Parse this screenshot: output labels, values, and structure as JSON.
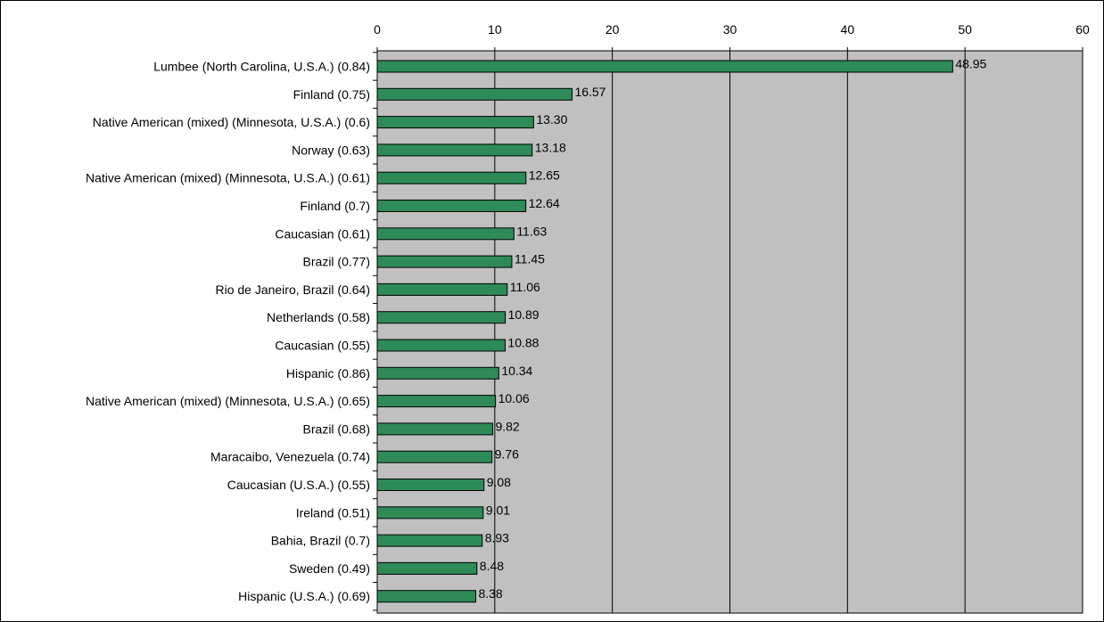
{
  "chart_data": {
    "type": "bar",
    "orientation": "horizontal",
    "title": "",
    "xlabel": "",
    "ylabel": "",
    "xlim": [
      0,
      60
    ],
    "x_ticks": [
      0,
      10,
      20,
      30,
      40,
      50,
      60
    ],
    "grid": "vertical major gridlines",
    "legend": "none",
    "categories": [
      "Lumbee (North Carolina, U.S.A.) (0.84)",
      "Finland (0.75)",
      "Native American (mixed) (Minnesota, U.S.A.) (0.6)",
      "Norway (0.63)",
      "Native American (mixed) (Minnesota, U.S.A.) (0.61)",
      "Finland (0.7)",
      "Caucasian (0.61)",
      "Brazil (0.77)",
      "Rio de Janeiro, Brazil (0.64)",
      "Netherlands  (0.58)",
      "Caucasian (0.55)",
      "Hispanic (0.86)",
      "Native American (mixed) (Minnesota, U.S.A.) (0.65)",
      "Brazil (0.68)",
      "Maracaibo, Venezuela (0.74)",
      "Caucasian (U.S.A.) (0.55)",
      "Ireland (0.51)",
      "Bahia, Brazil (0.7)",
      "Sweden (0.49)",
      "Hispanic (U.S.A.) (0.69)"
    ],
    "values": [
      48.95,
      16.57,
      13.3,
      13.18,
      12.65,
      12.64,
      11.63,
      11.45,
      11.06,
      10.89,
      10.88,
      10.34,
      10.06,
      9.82,
      9.76,
      9.08,
      9.01,
      8.93,
      8.48,
      8.38
    ],
    "value_labels": [
      "48.95",
      "16.57",
      "13.30",
      "13.18",
      "12.65",
      "12.64",
      "11.63",
      "11.45",
      "11.06",
      "10.89",
      "10.88",
      "10.34",
      "10.06",
      "9.82",
      "9.76",
      "9.08",
      "9.01",
      "8.93",
      "8.48",
      "8.38"
    ],
    "colors": {
      "bar": "#2e8b57",
      "bar_stroke": "#000000",
      "plot_background": "#c0c0c0",
      "gridline": "#000000"
    }
  }
}
